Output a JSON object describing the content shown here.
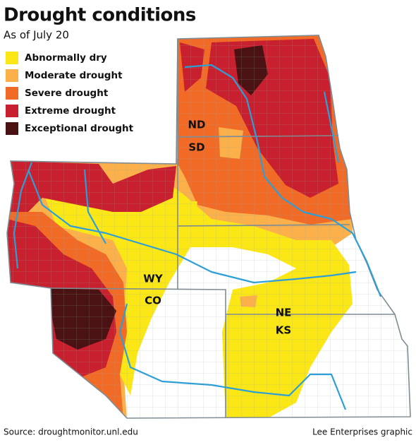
{
  "title": "Drought conditions",
  "subtitle": "As of July 20",
  "legend": [
    {
      "label": "Abnormally dry",
      "color": "#fbe616"
    },
    {
      "label": "Moderate drought",
      "color": "#fbb04a"
    },
    {
      "label": "Severe drought",
      "color": "#f26b26"
    },
    {
      "label": "Extreme drought",
      "color": "#c8202e"
    },
    {
      "label": "Exceptional drought",
      "color": "#4b1213"
    }
  ],
  "state_labels": [
    "ND",
    "SD",
    "WY",
    "CO",
    "NE",
    "KS"
  ],
  "source": "Source: droughtmonitor.unl.edu",
  "credit": "Lee Enterprises graphic"
}
